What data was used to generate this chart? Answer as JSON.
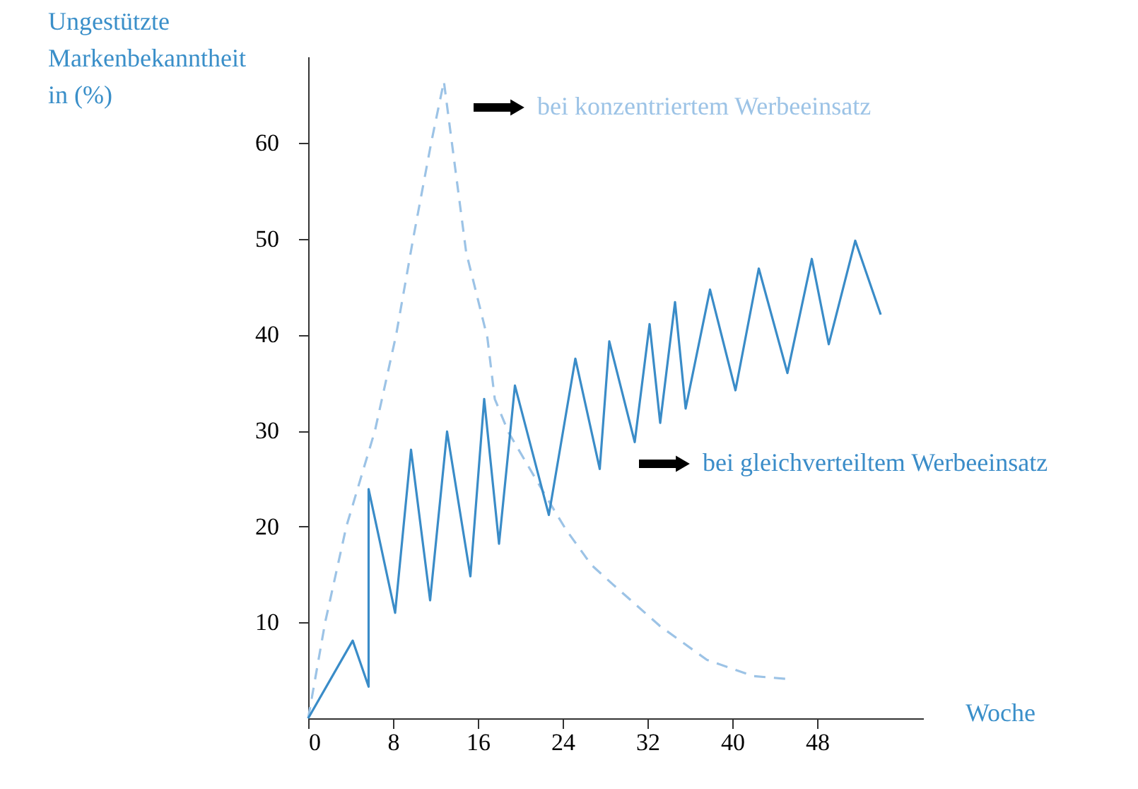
{
  "chart_data": {
    "type": "line",
    "ylabel": "Ungestützte\nMarkenbekanntheit\nin (%)",
    "xlabel": "Woche",
    "xlim": [
      0,
      58
    ],
    "xticks": [
      0,
      8,
      16,
      24,
      32,
      40,
      48
    ],
    "ylim": [
      0,
      69
    ],
    "yticks": [
      10,
      20,
      30,
      40,
      50,
      60
    ],
    "grid": false,
    "marker": "none",
    "series": [
      {
        "name": "bei konzentriertem Werbeeinsatz",
        "color": "#9cc3e6",
        "line_style": "dashed",
        "x": [
          0,
          1.6,
          3.6,
          6.3,
          8.3,
          9.9,
          11.6,
          12.8,
          14.9,
          16.9,
          17.6,
          18.9,
          22.5,
          24.3,
          26.7,
          28.7,
          33.2,
          37.6,
          42.0,
          45.2
        ],
        "values": [
          0,
          10,
          20,
          30,
          40,
          50,
          60,
          66.4,
          48.6,
          39.7,
          33.3,
          29.8,
          23.0,
          19.7,
          16.0,
          14.0,
          9.6,
          6.1,
          4.4,
          4.1
        ]
      },
      {
        "name": "bei gleichverteiltem Werbeeinsatz",
        "color": "#3a8cc8",
        "line_style": "solid",
        "x": [
          0,
          4.2,
          5.7,
          5.7,
          8.2,
          9.7,
          11.5,
          13.1,
          15.3,
          16.6,
          18.0,
          19.5,
          22.7,
          25.2,
          27.5,
          28.4,
          30.8,
          32.2,
          33.2,
          34.6,
          35.6,
          37.9,
          40.3,
          42.5,
          45.2,
          47.5,
          49.1,
          51.6,
          54.0
        ],
        "values": [
          0,
          8.1,
          3.3,
          23.9,
          11.0,
          28.0,
          12.3,
          29.9,
          14.8,
          33.3,
          18.2,
          34.7,
          21.2,
          37.5,
          26.0,
          39.3,
          28.8,
          41.1,
          30.8,
          43.4,
          32.3,
          44.7,
          34.2,
          46.9,
          36.0,
          47.9,
          39.0,
          49.8,
          42.1
        ]
      }
    ]
  }
}
